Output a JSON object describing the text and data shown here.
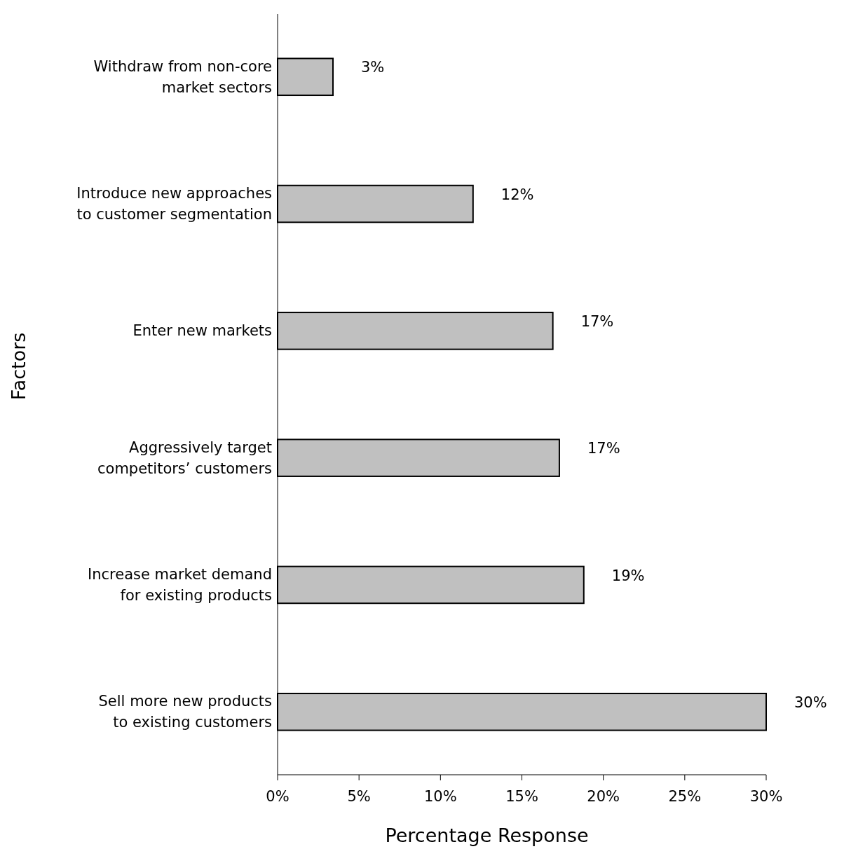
{
  "chart_data": {
    "type": "bar",
    "orientation": "horizontal",
    "categories": [
      "Withdraw from non-core market sectors",
      "Introduce new approaches to customer segmentation",
      "Enter new markets",
      "Aggressively target competitors’ customers",
      "Increase market demand for existing products",
      "Sell more new products to existing customers"
    ],
    "values": [
      3.4,
      12,
      16.9,
      17.3,
      18.8,
      30
    ],
    "value_labels": [
      "3%",
      "12%",
      "17%",
      "17%",
      "19%",
      "30%"
    ],
    "color": "#c0c0c0",
    "xlim": [
      0,
      30
    ],
    "xticks": [
      {
        "value": 0,
        "label": "0%"
      },
      {
        "value": 5,
        "label": "5%"
      },
      {
        "value": 10,
        "label": "10%"
      },
      {
        "value": 15,
        "label": "15%"
      },
      {
        "value": 20,
        "label": "20%"
      },
      {
        "value": 25,
        "label": "25%"
      },
      {
        "value": 30,
        "label": "30%"
      }
    ],
    "xlabel": "Percentage Response",
    "ylabel": "Factors",
    "grid": false
  }
}
